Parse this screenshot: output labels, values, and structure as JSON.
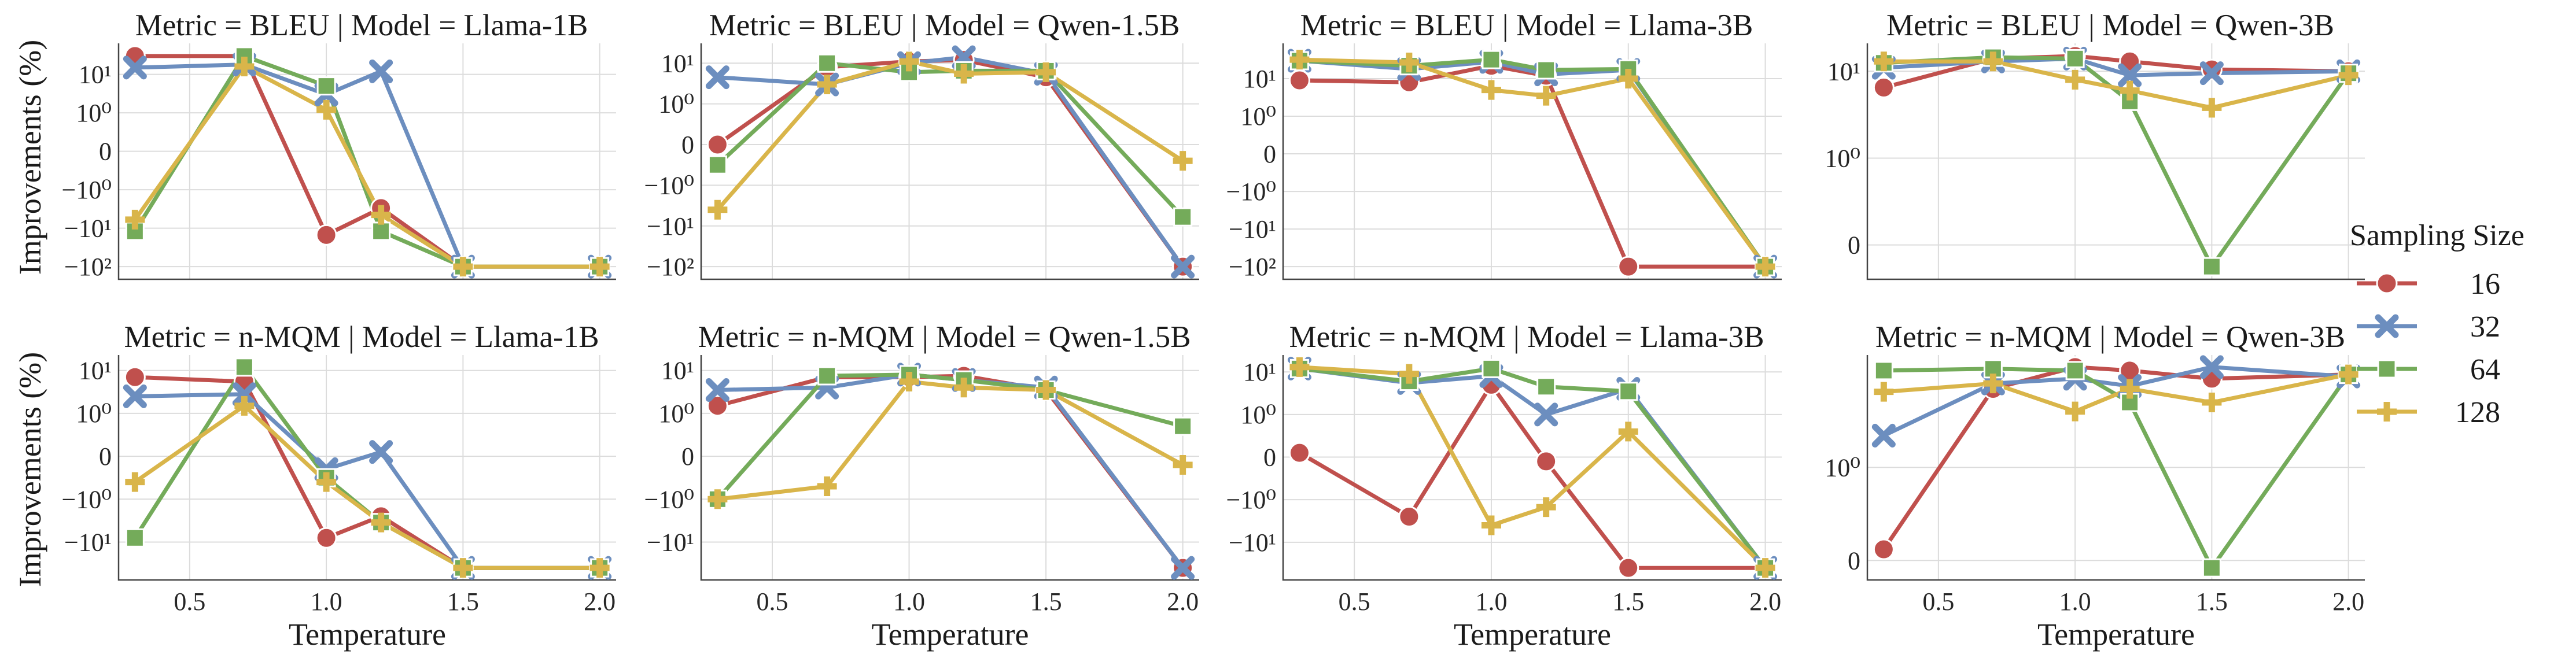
{
  "figure": {
    "ylabel": "Improvements (%)",
    "xlabel": "Temperature",
    "colors": {
      "16": "#c0504d",
      "32": "#6c8ebf",
      "64": "#74ab5a",
      "128": "#d9b54a"
    }
  },
  "legend": {
    "title": "Sampling Size",
    "items": [
      {
        "label": "16",
        "marker": "circle",
        "color": "#c0504d"
      },
      {
        "label": "32",
        "marker": "x",
        "color": "#6c8ebf"
      },
      {
        "label": "64",
        "marker": "square",
        "color": "#74ab5a"
      },
      {
        "label": "128",
        "marker": "plus",
        "color": "#d9b54a"
      }
    ]
  },
  "chart_data": [
    {
      "type": "line",
      "title": "Metric = BLEU | Model = Llama-1B",
      "xlabel": "",
      "ylabel": "Improvements (%)",
      "x": [
        0.3,
        0.7,
        1.0,
        1.2,
        1.5,
        2.0
      ],
      "x_ticks": [
        "0.5",
        "1.0",
        "1.5",
        "2.0"
      ],
      "y_ticks": [
        {
          "label": "10¹",
          "v": 10
        },
        {
          "label": "10⁰",
          "v": 1
        },
        {
          "label": "0",
          "v": 0
        },
        {
          "label": "−10⁰",
          "v": -1
        },
        {
          "label": "−10¹",
          "v": -10
        },
        {
          "label": "−10²",
          "v": -100
        }
      ],
      "y_range": [
        -100,
        30
      ],
      "series": [
        {
          "name": "16",
          "values": [
            30,
            30,
            -15,
            -3,
            -100,
            -100
          ]
        },
        {
          "name": "32",
          "values": [
            15,
            18,
            3,
            12,
            -100,
            -100
          ]
        },
        {
          "name": "64",
          "values": [
            -12,
            30,
            5,
            -12,
            -100,
            -100
          ]
        },
        {
          "name": "128",
          "values": [
            -6,
            16,
            1.2,
            -4.5,
            -100,
            -100
          ]
        }
      ]
    },
    {
      "type": "line",
      "title": "Metric = BLEU | Model = Qwen-1.5B",
      "xlabel": "",
      "ylabel": "",
      "x": [
        0.3,
        0.7,
        1.0,
        1.2,
        1.5,
        2.0
      ],
      "x_ticks": [
        "0.5",
        "1.0",
        "1.5",
        "2.0"
      ],
      "y_ticks": [
        {
          "label": "10¹",
          "v": 10
        },
        {
          "label": "10⁰",
          "v": 1
        },
        {
          "label": "0",
          "v": 0
        },
        {
          "label": "−10⁰",
          "v": -1
        },
        {
          "label": "−10¹",
          "v": -10
        },
        {
          "label": "−10²",
          "v": -100
        }
      ],
      "y_range": [
        -100,
        15
      ],
      "series": [
        {
          "name": "16",
          "values": [
            0,
            8,
            11,
            12,
            4.5,
            -100
          ]
        },
        {
          "name": "32",
          "values": [
            4.5,
            3,
            10,
            14,
            5.5,
            -100
          ]
        },
        {
          "name": "64",
          "values": [
            -0.5,
            10,
            6,
            6.5,
            6.5,
            -6
          ]
        },
        {
          "name": "128",
          "values": [
            -4,
            3,
            11,
            5.5,
            6,
            -0.4
          ]
        }
      ]
    },
    {
      "type": "line",
      "title": "Metric = BLEU | Model = Llama-3B",
      "xlabel": "",
      "ylabel": "",
      "x": [
        0.3,
        0.7,
        1.0,
        1.2,
        1.5,
        2.0
      ],
      "x_ticks": [
        "0.5",
        "1.0",
        "1.5",
        "2.0"
      ],
      "y_ticks": [
        {
          "label": "10¹",
          "v": 10
        },
        {
          "label": "10⁰",
          "v": 1
        },
        {
          "label": "0",
          "v": 0
        },
        {
          "label": "−10⁰",
          "v": -1
        },
        {
          "label": "−10¹",
          "v": -10
        },
        {
          "label": "−10²",
          "v": -100
        }
      ],
      "y_range": [
        -100,
        40
      ],
      "series": [
        {
          "name": "16",
          "values": [
            9,
            8,
            22,
            12,
            -100,
            -100
          ]
        },
        {
          "name": "32",
          "values": [
            30,
            18,
            28,
            13,
            17,
            -100
          ]
        },
        {
          "name": "64",
          "values": [
            30,
            22,
            32,
            17,
            18,
            -100
          ]
        },
        {
          "name": "128",
          "values": [
            32,
            27,
            5,
            3.5,
            10,
            -100
          ]
        }
      ]
    },
    {
      "type": "line",
      "title": "Metric = BLEU | Model = Qwen-3B",
      "xlabel": "",
      "ylabel": "",
      "x": [
        0.3,
        0.7,
        1.0,
        1.2,
        1.5,
        2.0
      ],
      "x_ticks": [
        "0.5",
        "1.0",
        "1.5",
        "2.0"
      ],
      "y_ticks": [
        {
          "label": "10¹",
          "v": 10
        },
        {
          "label": "10⁰",
          "v": 1
        },
        {
          "label": "0",
          "v": 0
        }
      ],
      "y_range": [
        -0.25,
        15
      ],
      "series": [
        {
          "name": "16",
          "values": [
            6.5,
            14,
            15,
            13,
            10.5,
            10
          ]
        },
        {
          "name": "32",
          "values": [
            11,
            13,
            14,
            9,
            9.5,
            10
          ]
        },
        {
          "name": "64",
          "values": [
            12.5,
            14.5,
            14,
            4.5,
            -0.25,
            9.5
          ]
        },
        {
          "name": "128",
          "values": [
            13,
            13,
            8,
            6,
            3.8,
            9
          ]
        }
      ]
    },
    {
      "type": "line",
      "title": "Metric = n-MQM | Model = Llama-1B",
      "xlabel": "Temperature",
      "ylabel": "Improvements (%)",
      "x": [
        0.3,
        0.7,
        1.0,
        1.2,
        1.5,
        2.0
      ],
      "x_ticks": [
        "0.5",
        "1.0",
        "1.5",
        "2.0"
      ],
      "y_ticks": [
        {
          "label": "10¹",
          "v": 10
        },
        {
          "label": "10⁰",
          "v": 1
        },
        {
          "label": "0",
          "v": 0
        },
        {
          "label": "−10⁰",
          "v": -1
        },
        {
          "label": "−10¹",
          "v": -10
        }
      ],
      "y_range": [
        -40,
        12
      ],
      "series": [
        {
          "name": "16",
          "values": [
            7,
            5.5,
            -8,
            -2.5,
            -40,
            -40
          ]
        },
        {
          "name": "32",
          "values": [
            2.5,
            2.8,
            -0.3,
            0.1,
            -40,
            -40
          ]
        },
        {
          "name": "64",
          "values": [
            -8,
            12,
            -0.5,
            -3.5,
            -40,
            -40
          ]
        },
        {
          "name": "128",
          "values": [
            -0.6,
            1.5,
            -0.6,
            -3.5,
            -40,
            -40
          ]
        }
      ]
    },
    {
      "type": "line",
      "title": "Metric = n-MQM | Model = Qwen-1.5B",
      "xlabel": "Temperature",
      "ylabel": "",
      "x": [
        0.3,
        0.7,
        1.0,
        1.2,
        1.5,
        2.0
      ],
      "x_ticks": [
        "0.5",
        "1.0",
        "1.5",
        "2.0"
      ],
      "y_ticks": [
        {
          "label": "10¹",
          "v": 10
        },
        {
          "label": "10⁰",
          "v": 1
        },
        {
          "label": "0",
          "v": 0
        },
        {
          "label": "−10⁰",
          "v": -1
        },
        {
          "label": "−10¹",
          "v": -10
        }
      ],
      "y_range": [
        -40,
        12
      ],
      "series": [
        {
          "name": "16",
          "values": [
            1.5,
            7,
            7,
            7.5,
            3.5,
            -40
          ]
        },
        {
          "name": "32",
          "values": [
            3.5,
            4,
            8,
            6,
            4,
            -40
          ]
        },
        {
          "name": "64",
          "values": [
            -1,
            7.5,
            8,
            6,
            3.5,
            0.7
          ]
        },
        {
          "name": "128",
          "values": [
            -1,
            -0.7,
            5.5,
            4,
            3.5,
            -0.2
          ]
        }
      ]
    },
    {
      "type": "line",
      "title": "Metric = n-MQM | Model = Llama-3B",
      "xlabel": "Temperature",
      "ylabel": "",
      "x": [
        0.3,
        0.7,
        1.0,
        1.2,
        1.5,
        2.0
      ],
      "x_ticks": [
        "0.5",
        "1.0",
        "1.5",
        "2.0"
      ],
      "y_ticks": [
        {
          "label": "10¹",
          "v": 10
        },
        {
          "label": "10⁰",
          "v": 1
        },
        {
          "label": "0",
          "v": 0
        },
        {
          "label": "−10⁰",
          "v": -1
        },
        {
          "label": "−10¹",
          "v": -10
        }
      ],
      "y_range": [
        -40,
        13
      ],
      "series": [
        {
          "name": "16",
          "values": [
            0.1,
            -2.5,
            5,
            -0.1,
            -40,
            -40
          ]
        },
        {
          "name": "32",
          "values": [
            12,
            5.5,
            8,
            1,
            4,
            -40
          ]
        },
        {
          "name": "64",
          "values": [
            12,
            6,
            12,
            4.5,
            3.5,
            -40
          ]
        },
        {
          "name": "128",
          "values": [
            13,
            9,
            -4,
            -1.5,
            0.6,
            -40
          ]
        }
      ]
    },
    {
      "type": "line",
      "title": "Metric = n-MQM | Model = Qwen-3B",
      "xlabel": "Temperature",
      "ylabel": "",
      "x": [
        0.3,
        0.7,
        1.0,
        1.2,
        1.5,
        2.0
      ],
      "x_ticks": [
        "0.5",
        "1.0",
        "1.5",
        "2.0"
      ],
      "y_ticks": [
        {
          "label": "10⁰",
          "v": 1
        },
        {
          "label": "0",
          "v": 0
        }
      ],
      "y_range": [
        -0.08,
        12
      ],
      "series": [
        {
          "name": "16",
          "values": [
            0.12,
            7,
            12,
            11,
            9,
            10
          ]
        },
        {
          "name": "32",
          "values": [
            2.2,
            8,
            9,
            7.5,
            12,
            9.5
          ]
        },
        {
          "name": "64",
          "values": [
            11,
            11.5,
            11,
            5,
            -0.08,
            10
          ]
        },
        {
          "name": "128",
          "values": [
            6.5,
            8,
            4,
            7,
            5,
            10
          ]
        }
      ]
    }
  ]
}
